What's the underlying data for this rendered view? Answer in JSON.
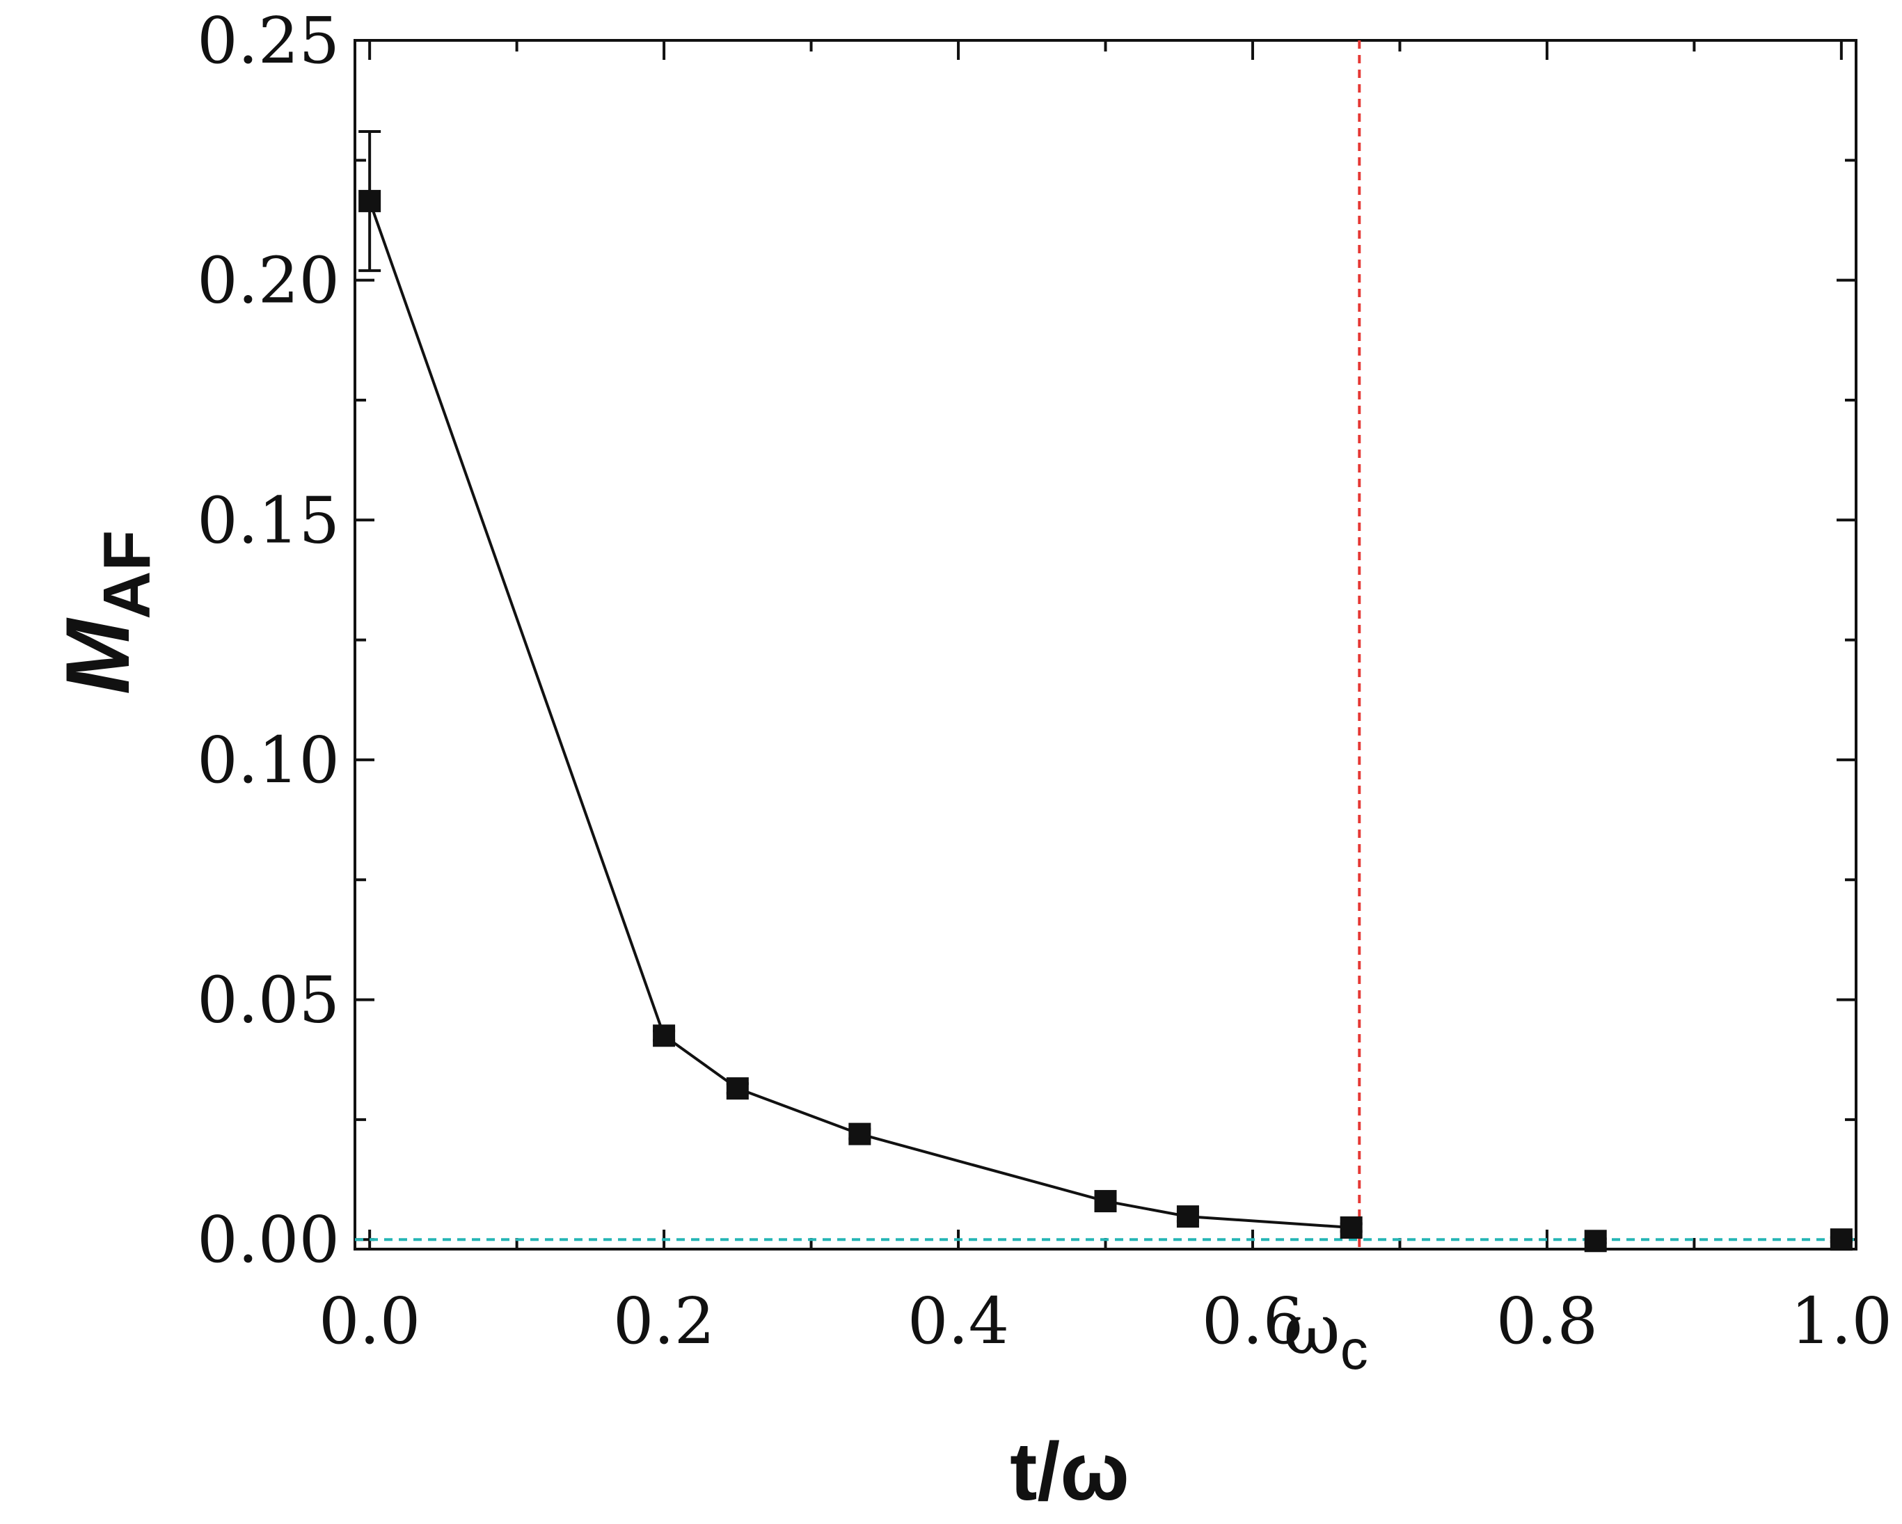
{
  "chart_data": {
    "type": "scatter",
    "xlabel": "t/ω",
    "ylabel": {
      "main": "M",
      "sub": "AF"
    },
    "xlim": [
      -0.01,
      1.01
    ],
    "ylim": [
      -0.002,
      0.25
    ],
    "x_ticks": [
      0.0,
      0.2,
      0.4,
      0.6,
      0.8,
      1.0
    ],
    "x_tick_labels": [
      "0.0",
      "0.2",
      "0.4",
      "0.6",
      "0.8",
      "1.0"
    ],
    "y_ticks": [
      0.0,
      0.05,
      0.1,
      0.15,
      0.2,
      0.25
    ],
    "y_tick_labels": [
      "0.00",
      "0.05",
      "0.10",
      "0.15",
      "0.20",
      "0.25"
    ],
    "grid": false,
    "series": [
      {
        "x": [
          0.0,
          0.2,
          0.25,
          0.333,
          0.5,
          0.556,
          0.667,
          0.833,
          1.0
        ],
        "y": [
          0.2165,
          0.0425,
          0.0315,
          0.022,
          0.008,
          0.0048,
          0.0025,
          -0.0003,
          0.0
        ],
        "yerr": [
          0.0145,
          0.001,
          0.001,
          0.001,
          0.001,
          0.001,
          0.0008,
          0.0004,
          0.0004
        ],
        "line_through": [
          0,
          1,
          2,
          3,
          4,
          5,
          6
        ],
        "color": "#111111",
        "marker": "square"
      }
    ],
    "annotations": [
      {
        "type": "vline",
        "x": 0.6725,
        "color": "#e53935",
        "style": "dashed",
        "label": {
          "main": "ω",
          "sub": "c"
        }
      },
      {
        "type": "hline",
        "y": 0.0,
        "color": "#26b5b5",
        "style": "dashed"
      }
    ]
  }
}
